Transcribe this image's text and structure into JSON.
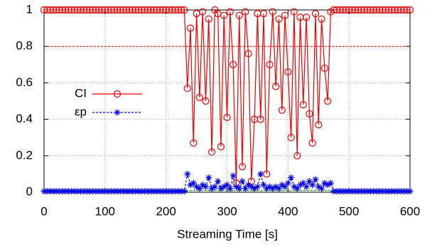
{
  "chart_data": {
    "type": "line",
    "xlabel": "Streaming Time [s]",
    "x": [
      0,
      5,
      10,
      15,
      20,
      25,
      30,
      35,
      40,
      45,
      50,
      55,
      60,
      65,
      70,
      75,
      80,
      85,
      90,
      95,
      100,
      105,
      110,
      115,
      120,
      125,
      130,
      135,
      140,
      145,
      150,
      155,
      160,
      165,
      170,
      175,
      180,
      185,
      190,
      195,
      200,
      205,
      210,
      215,
      220,
      225,
      230,
      235,
      240,
      245,
      250,
      255,
      260,
      265,
      270,
      275,
      280,
      285,
      290,
      295,
      300,
      305,
      310,
      315,
      320,
      325,
      330,
      335,
      340,
      345,
      350,
      355,
      360,
      365,
      370,
      375,
      380,
      385,
      390,
      395,
      400,
      405,
      410,
      415,
      420,
      425,
      430,
      435,
      440,
      445,
      450,
      455,
      460,
      465,
      470,
      475,
      480,
      485,
      490,
      495,
      500,
      505,
      510,
      515,
      520,
      525,
      530,
      535,
      540,
      545,
      550,
      555,
      560,
      565,
      570,
      575,
      580,
      585,
      590,
      595,
      600
    ],
    "series": [
      {
        "name": "CI",
        "color": "#ee0000",
        "marker": "circle",
        "values": [
          1,
          1,
          1,
          1,
          1,
          1,
          1,
          1,
          1,
          1,
          1,
          1,
          1,
          1,
          1,
          1,
          1,
          1,
          1,
          1,
          1,
          1,
          1,
          1,
          1,
          1,
          1,
          1,
          1,
          1,
          1,
          1,
          1,
          1,
          1,
          1,
          1,
          1,
          1,
          1,
          1,
          1,
          1,
          1,
          1,
          1,
          1,
          0.57,
          0.9,
          0.27,
          0.98,
          0.52,
          0.99,
          0.5,
          0.95,
          0.22,
          1,
          0.98,
          0.25,
          0.97,
          0.41,
          0.99,
          0.7,
          0.05,
          0.97,
          0.14,
          0.99,
          0.76,
          0.06,
          0.4,
          0.98,
          0.4,
          0.98,
          0.1,
          0.7,
          0.99,
          0.58,
          0.95,
          0.45,
          0.97,
          0.66,
          0.3,
          0.99,
          0.2,
          0.96,
          0.48,
          0.96,
          0.43,
          0.27,
          0.98,
          0.37,
          0.95,
          0.68,
          0.5,
          0.99,
          1,
          1,
          1,
          1,
          1,
          1,
          1,
          1,
          1,
          1,
          1,
          1,
          1,
          1,
          1,
          1,
          1,
          1,
          1,
          1,
          1,
          1,
          1,
          1,
          1,
          1
        ]
      },
      {
        "name": "εp",
        "color": "#0000ee",
        "marker": "star",
        "values": [
          0.005,
          0.005,
          0.005,
          0.005,
          0.005,
          0.005,
          0.005,
          0.005,
          0.005,
          0.005,
          0.005,
          0.005,
          0.005,
          0.005,
          0.005,
          0.005,
          0.005,
          0.005,
          0.005,
          0.005,
          0.005,
          0.005,
          0.005,
          0.005,
          0.005,
          0.005,
          0.005,
          0.005,
          0.005,
          0.005,
          0.005,
          0.005,
          0.005,
          0.005,
          0.005,
          0.005,
          0.005,
          0.005,
          0.005,
          0.005,
          0.005,
          0.005,
          0.005,
          0.005,
          0.005,
          0.005,
          0.005,
          0.1,
          0.04,
          0.05,
          0.03,
          0.02,
          0.04,
          0.03,
          0.08,
          0.02,
          0.03,
          0.06,
          0.02,
          0.03,
          0.04,
          0.02,
          0.09,
          0.03,
          0.02,
          0.06,
          0.02,
          0.04,
          0.03,
          0.02,
          0.03,
          0.1,
          0.04,
          0.02,
          0.03,
          0.02,
          0.03,
          0.02,
          0.04,
          0.03,
          0.05,
          0.08,
          0.03,
          0.02,
          0.04,
          0.05,
          0.03,
          0.06,
          0.04,
          0.07,
          0.03,
          0.02,
          0.05,
          0.04,
          0.05,
          0.005,
          0.005,
          0.005,
          0.005,
          0.005,
          0.005,
          0.005,
          0.005,
          0.005,
          0.005,
          0.005,
          0.005,
          0.005,
          0.005,
          0.005,
          0.005,
          0.005,
          0.005,
          0.005,
          0.005,
          0.005,
          0.005,
          0.005,
          0.005,
          0.005,
          0.005
        ]
      }
    ],
    "hlines": [
      {
        "value": 0.8,
        "color": "#ee0000"
      },
      {
        "value": 0.01,
        "color": "#00aa00"
      }
    ],
    "xlim": [
      0,
      600
    ],
    "xticks": [
      0,
      100,
      200,
      300,
      400,
      500,
      600
    ],
    "ylim": [
      0,
      1
    ],
    "yticks": [
      0,
      0.2,
      0.4,
      0.6,
      0.8,
      1
    ],
    "grid": true,
    "legend": "left"
  }
}
